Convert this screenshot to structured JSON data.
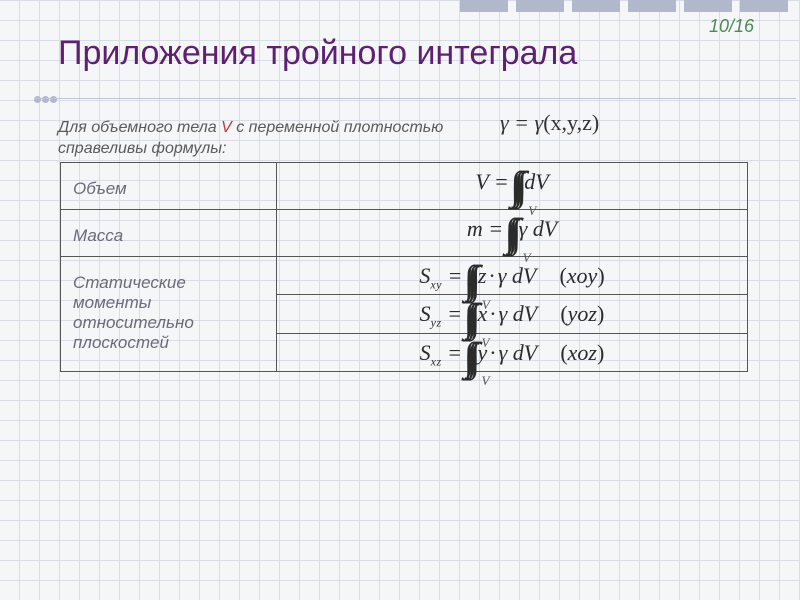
{
  "page": {
    "number": "10/16"
  },
  "title": "Приложения тройного интеграла",
  "intro": {
    "prefix": "Для объемного тела ",
    "body_symbol": "V",
    "mid": " с переменной плотностью ",
    "suffix": "справеливы формулы:"
  },
  "density_eq": {
    "lhs_gamma": "γ",
    "eq": " = ",
    "rhs_gamma": "γ",
    "args": "(x,y,z)"
  },
  "rows": {
    "volume": {
      "label": "Объем",
      "lhs": "V",
      "integrand": "dV"
    },
    "mass": {
      "label": "Масса",
      "lhs": "m",
      "integrand": "γ dV"
    },
    "moments": {
      "label": "Статические моменты относительно плоскостей",
      "sxy": {
        "lhs": "S",
        "sub": "xy",
        "var": "z",
        "plane": "xoy"
      },
      "syz": {
        "lhs": "S",
        "sub": "yz",
        "var": "x",
        "plane": "yoz"
      },
      "sxz": {
        "lhs": "S",
        "sub": "xz",
        "var": "y",
        "plane": "xoz"
      }
    }
  },
  "symbols": {
    "triple_int": "∫∫∫",
    "region_sub": "V",
    "gamma": "γ",
    "dot": "·",
    "dV": " dV"
  },
  "styling": {
    "grid_color": "#d8dce6",
    "title_color": "#5e2070",
    "page_color": "#4a8a55",
    "label_color": "#6a6a7a",
    "border_color": "#555",
    "title_fontsize": 34,
    "formula_fontsize": 22,
    "integral_fontsize": 40
  }
}
